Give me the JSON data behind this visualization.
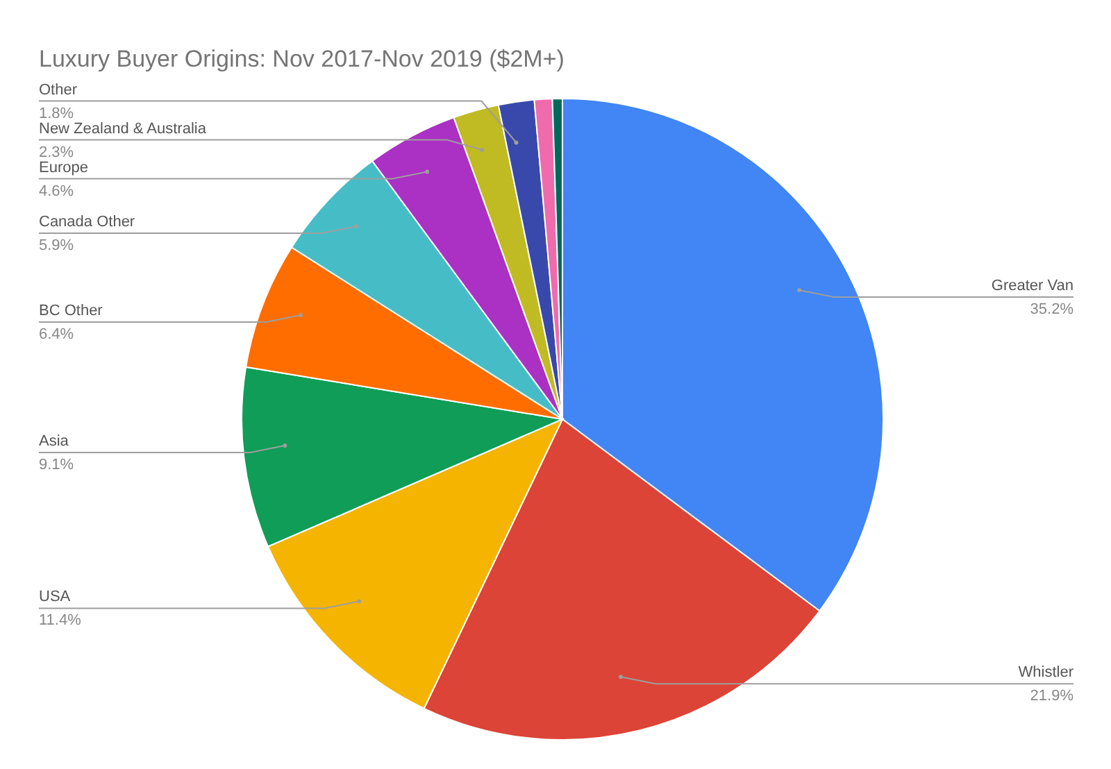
{
  "chart_data": {
    "type": "pie",
    "title": "Luxury Buyer Origins: Nov 2017-Nov 2019 ($2M+)",
    "categories": [
      "Greater Van",
      "Whistler",
      "USA",
      "Asia",
      "BC Other",
      "Canada Other",
      "Europe",
      "New Zealand & Australia",
      "Other",
      null,
      null
    ],
    "values": [
      35.2,
      21.9,
      11.4,
      9.1,
      6.4,
      5.9,
      4.6,
      2.3,
      1.8,
      0.9,
      0.5
    ],
    "colors": [
      "#4285f4",
      "#db4437",
      "#f4b400",
      "#0f9d58",
      "#ff6d01",
      "#46bdc6",
      "#ab30c4",
      "#c0bb22",
      "#3949ab",
      "#f06bac",
      "#00695c"
    ],
    "value_labels": [
      "35.2%",
      "21.9%",
      "11.4%",
      "9.1%",
      "6.4%",
      "5.9%",
      "4.6%",
      "2.3%",
      "1.8%",
      null,
      null
    ]
  }
}
